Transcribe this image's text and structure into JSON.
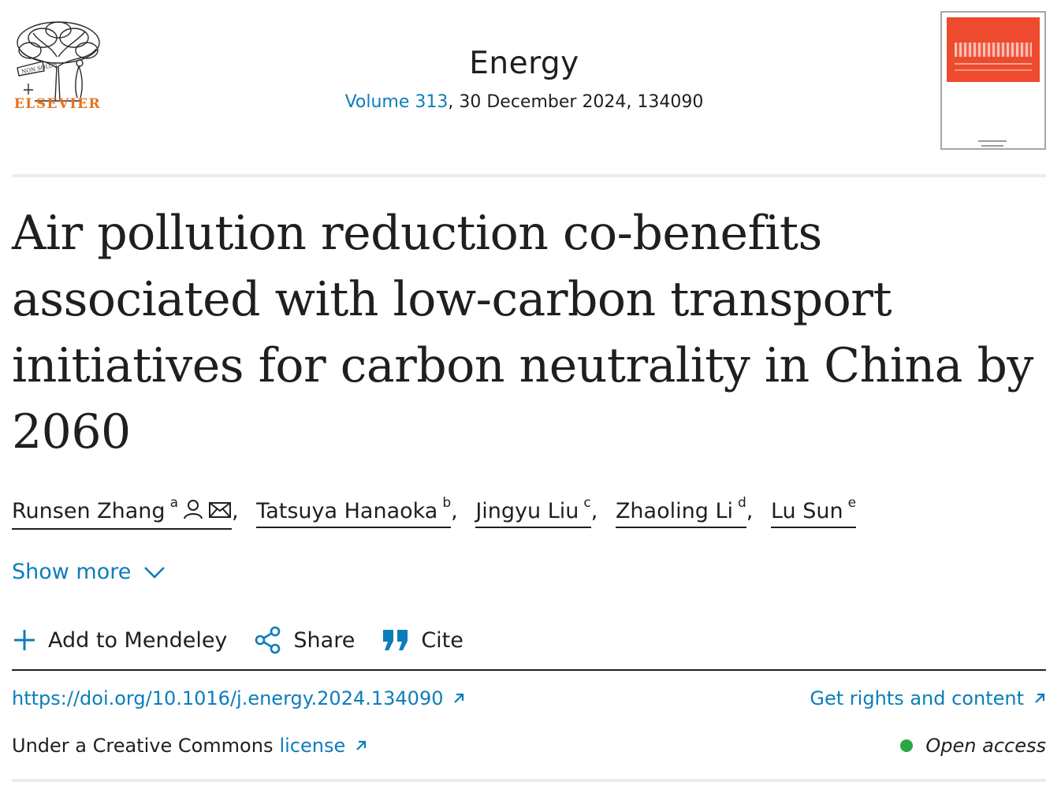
{
  "publisher": {
    "name": "ELSEVIER"
  },
  "journal": {
    "title": "Energy",
    "volume_label": "Volume 313",
    "issue_rest": ", 30 December 2024, 134090"
  },
  "article": {
    "title": "Air pollution reduction co-benefits associated with low-carbon transport initiatives for carbon neutrality in China by 2060"
  },
  "authors": [
    {
      "name": "Runsen Zhang",
      "sup": "a",
      "icons": [
        "person-icon",
        "envelope-icon"
      ]
    },
    {
      "name": "Tatsuya Hanaoka",
      "sup": "b"
    },
    {
      "name": "Jingyu Liu",
      "sup": "c"
    },
    {
      "name": "Zhaoling Li",
      "sup": "d"
    },
    {
      "name": "Lu Sun",
      "sup": "e"
    }
  ],
  "author_separator": ",",
  "show_more": {
    "label": "Show more"
  },
  "toolbar": {
    "mendeley_label": "Add to Mendeley",
    "share_label": "Share",
    "cite_label": "Cite"
  },
  "links": {
    "doi": "https://doi.org/10.1016/j.energy.2024.134090",
    "rights": "Get rights and content"
  },
  "license": {
    "prefix": "Under a Creative Commons",
    "link_label": "license"
  },
  "access": {
    "label": "Open access"
  },
  "colors": {
    "link": "#0c7dbb",
    "publisher_orange": "#e9711c",
    "cover_red": "#ee4a2e",
    "open_access_green": "#29a745"
  }
}
